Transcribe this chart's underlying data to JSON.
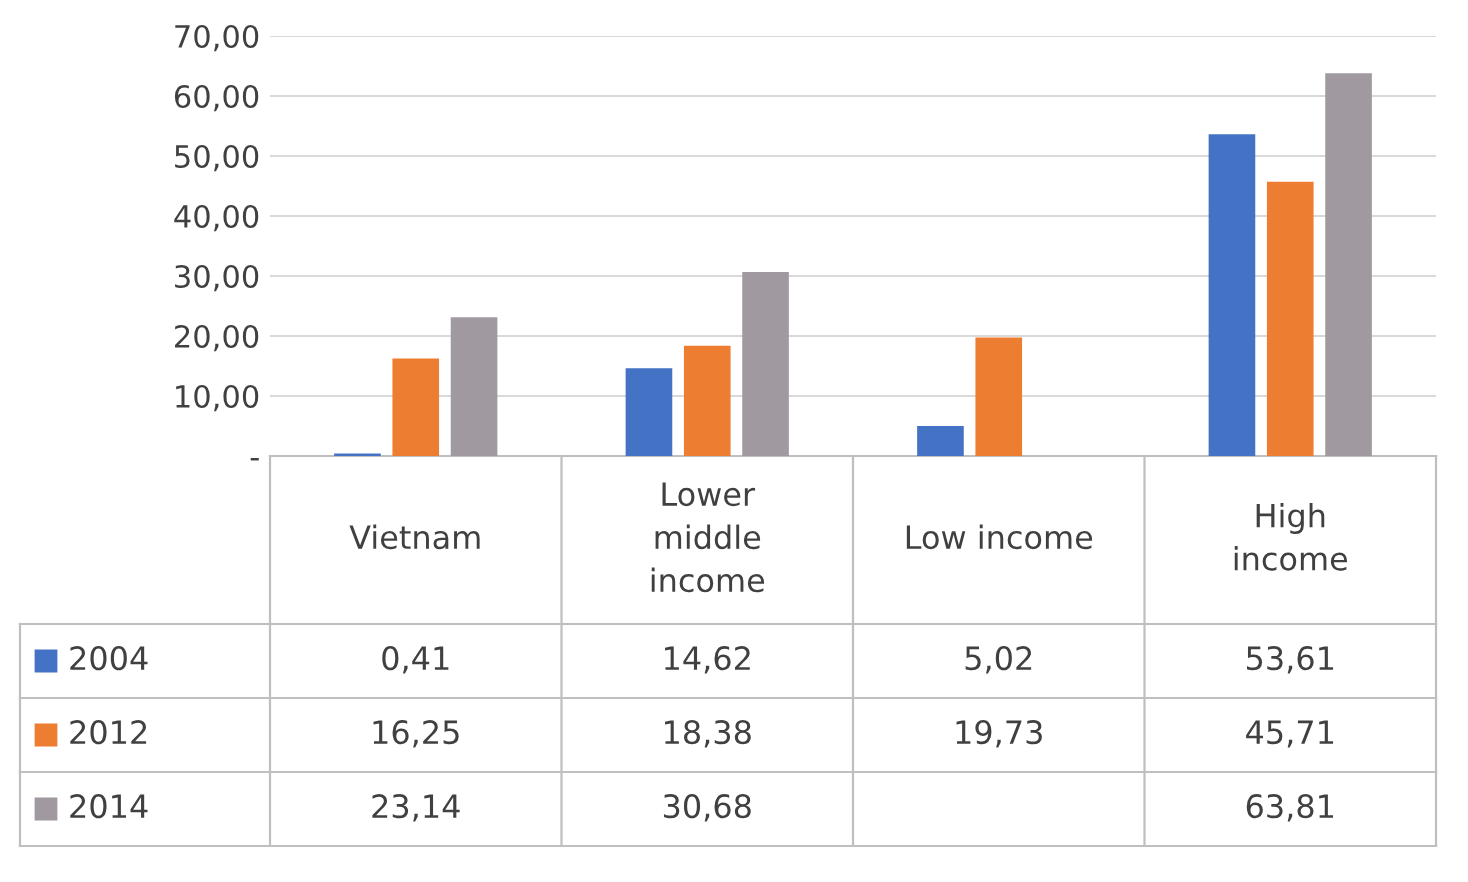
{
  "chart_data": {
    "type": "bar",
    "categories": [
      "Vietnam",
      "Lower\nmiddle\nincome",
      "Low income",
      "High\nincome"
    ],
    "series": [
      {
        "name": "2004",
        "color": "#4472c4",
        "values": [
          0.41,
          14.62,
          5.02,
          53.61
        ],
        "value_labels": [
          "0,41",
          "14,62",
          "5,02",
          "53,61"
        ]
      },
      {
        "name": "2012",
        "color": "#ed7d31",
        "values": [
          16.25,
          18.38,
          19.73,
          45.71
        ],
        "value_labels": [
          "16,25",
          "18,38",
          "19,73",
          "45,71"
        ]
      },
      {
        "name": "2014",
        "color": "#a09aa0",
        "values": [
          23.14,
          30.68,
          null,
          63.81
        ],
        "value_labels": [
          "23,14",
          "30,68",
          null,
          "63,81"
        ]
      }
    ],
    "ylim": [
      0,
      70
    ],
    "yticks": [
      {
        "value": 0,
        "label": "-"
      },
      {
        "value": 10,
        "label": "10,00"
      },
      {
        "value": 20,
        "label": "20,00"
      },
      {
        "value": 30,
        "label": "30,00"
      },
      {
        "value": 40,
        "label": "40,00"
      },
      {
        "value": 50,
        "label": "50,00"
      },
      {
        "value": 60,
        "label": "60,00"
      },
      {
        "value": 70,
        "label": "70,00"
      }
    ],
    "grid": "y",
    "legend": "bottom"
  }
}
